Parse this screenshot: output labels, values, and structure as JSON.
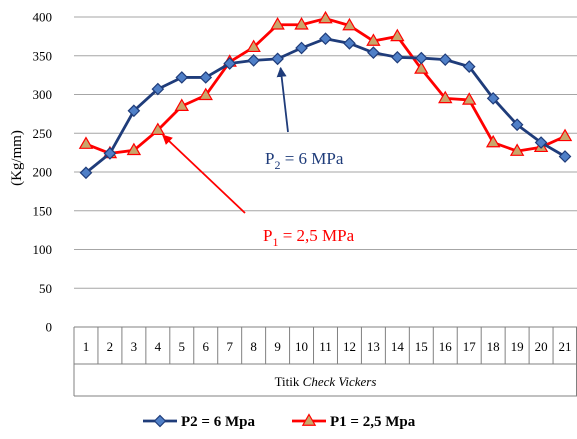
{
  "chart_data": {
    "type": "line",
    "ylabel": "(Kg/mm)",
    "xlabel_plain": "Titik ",
    "xlabel_italic": "Check Vickers",
    "ylim": [
      0,
      400
    ],
    "yticks": [
      0,
      50,
      100,
      150,
      200,
      250,
      300,
      350,
      400
    ],
    "grid": "horizontal",
    "categories": [
      "1",
      "2",
      "3",
      "4",
      "5",
      "6",
      "7",
      "8",
      "9",
      "10",
      "11",
      "12",
      "13",
      "14",
      "15",
      "16",
      "17",
      "18",
      "19",
      "20",
      "21"
    ],
    "series": [
      {
        "name": "P2 = 6 Mpa",
        "color": "#1f3c7a",
        "marker_fill": "#4f7fc7",
        "marker": "diamond",
        "values": [
          199,
          224,
          279,
          307,
          322,
          322,
          340,
          344,
          346,
          360,
          372,
          366,
          354,
          348,
          347,
          345,
          336,
          295,
          261,
          238,
          220
        ]
      },
      {
        "name": "P1 = 2,5 Mpa",
        "color": "#ff0000",
        "marker_fill": "#c9a66b",
        "marker": "triangle",
        "values": [
          236,
          224,
          228,
          254,
          285,
          299,
          342,
          361,
          390,
          390,
          398,
          389,
          369,
          375,
          333,
          295,
          293,
          238,
          227,
          232,
          246
        ]
      }
    ],
    "annotations": [
      {
        "label_main": "P",
        "label_sub": "2",
        "label_rest": " = 6 MPa",
        "color": "#1f3c7a",
        "target_index": 8
      },
      {
        "label_main": "P",
        "label_sub": "1",
        "label_rest": " = 2,5 MPa",
        "color": "#ff0000",
        "target_index": 3
      }
    ],
    "legend": {
      "position": "bottom",
      "entries": [
        "P2 = 6 Mpa",
        "P1 = 2,5 Mpa"
      ]
    }
  }
}
